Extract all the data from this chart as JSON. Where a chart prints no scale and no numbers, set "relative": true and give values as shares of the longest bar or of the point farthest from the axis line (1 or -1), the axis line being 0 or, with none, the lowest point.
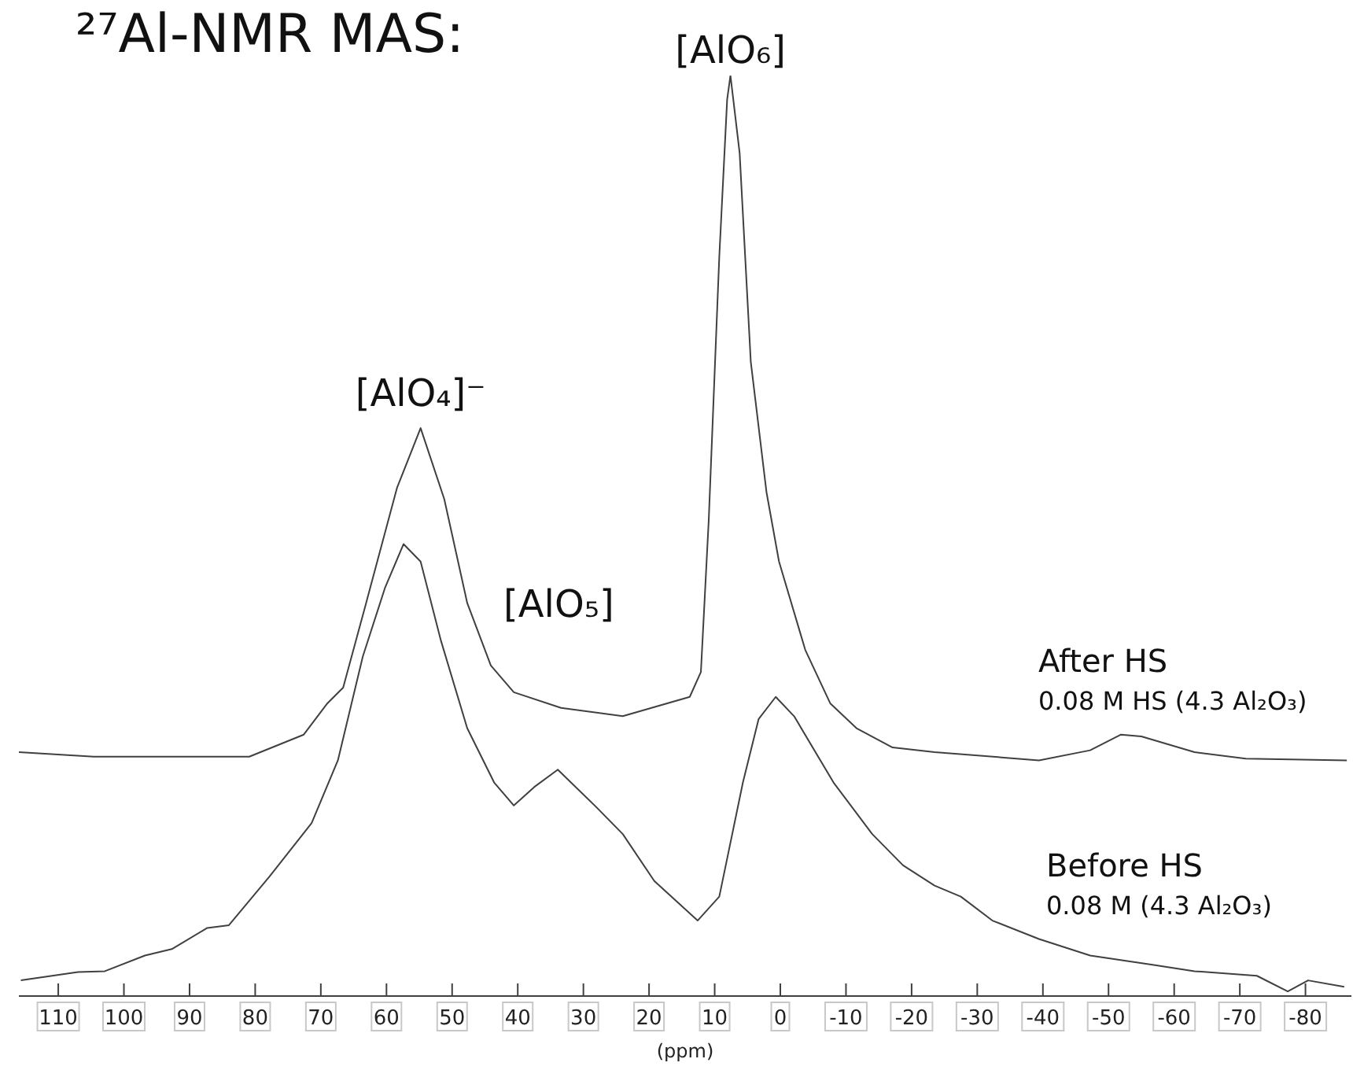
{
  "chart_data": {
    "type": "line",
    "title": "²⁷Al-NMR MAS:",
    "xlabel": "(ppm)",
    "relative": true,
    "xlim": [
      116,
      -87
    ],
    "xticks": [
      110,
      100,
      90,
      80,
      70,
      60,
      50,
      40,
      30,
      20,
      10,
      0,
      -10,
      -20,
      -30,
      -40,
      -50,
      -60,
      -70,
      -80
    ],
    "series": [
      {
        "name": "After HS",
        "color": "#404040",
        "x": [
          116.0,
          104.6,
          95.1,
          80.9,
          72.6,
          69.0,
          66.6,
          63.1,
          58.4,
          54.8,
          51.2,
          47.7,
          44.1,
          40.6,
          33.4,
          24.0,
          13.8,
          12.1,
          10.9,
          9.3,
          8.1,
          7.6,
          6.2,
          4.5,
          2.1,
          0.2,
          -3.8,
          -7.6,
          -11.6,
          -17.1,
          -23.5,
          -39.4,
          -47.2,
          -51.9,
          -55.0,
          -63.1,
          -70.9,
          -86.3
        ],
        "values": [
          0.265,
          0.26,
          0.26,
          0.26,
          0.284,
          0.318,
          0.335,
          0.427,
          0.552,
          0.617,
          0.54,
          0.427,
          0.359,
          0.33,
          0.313,
          0.304,
          0.325,
          0.352,
          0.518,
          0.803,
          0.974,
          1.0,
          0.916,
          0.689,
          0.547,
          0.472,
          0.376,
          0.318,
          0.291,
          0.27,
          0.265,
          0.256,
          0.267,
          0.284,
          0.282,
          0.265,
          0.258,
          0.256
        ]
      },
      {
        "name": "Before HS",
        "color": "#404040",
        "x": [
          115.7,
          107.0,
          102.9,
          96.8,
          92.7,
          87.3,
          84.0,
          77.8,
          71.4,
          67.4,
          63.6,
          60.2,
          57.4,
          54.8,
          51.7,
          47.7,
          43.6,
          40.6,
          37.5,
          33.9,
          28.0,
          24.0,
          19.2,
          12.6,
          9.3,
          5.7,
          3.3,
          0.7,
          -2.1,
          -8.1,
          -14.0,
          -18.7,
          -23.5,
          -27.5,
          -32.3,
          -39.4,
          -47.2,
          -56.7,
          -63.1,
          -72.6,
          -77.3,
          -80.4,
          -85.9
        ],
        "values": [
          0.017,
          0.026,
          0.027,
          0.044,
          0.051,
          0.074,
          0.077,
          0.13,
          0.188,
          0.256,
          0.369,
          0.444,
          0.491,
          0.472,
          0.386,
          0.291,
          0.232,
          0.207,
          0.227,
          0.246,
          0.205,
          0.176,
          0.125,
          0.082,
          0.108,
          0.232,
          0.301,
          0.325,
          0.304,
          0.232,
          0.176,
          0.142,
          0.12,
          0.108,
          0.082,
          0.062,
          0.044,
          0.034,
          0.027,
          0.022,
          0.005,
          0.017,
          0.01
        ]
      }
    ],
    "annotations": [
      {
        "text": "[AlO₆]",
        "x": 7.6,
        "y": 1.0
      },
      {
        "text": "[AlO₄]⁻",
        "x": 54.8,
        "y": 0.617
      },
      "[AlO₅]",
      "0.08 M HS (4.3 Al₂O₃)",
      "0.08 M (4.3 Al₂O₃)"
    ]
  }
}
